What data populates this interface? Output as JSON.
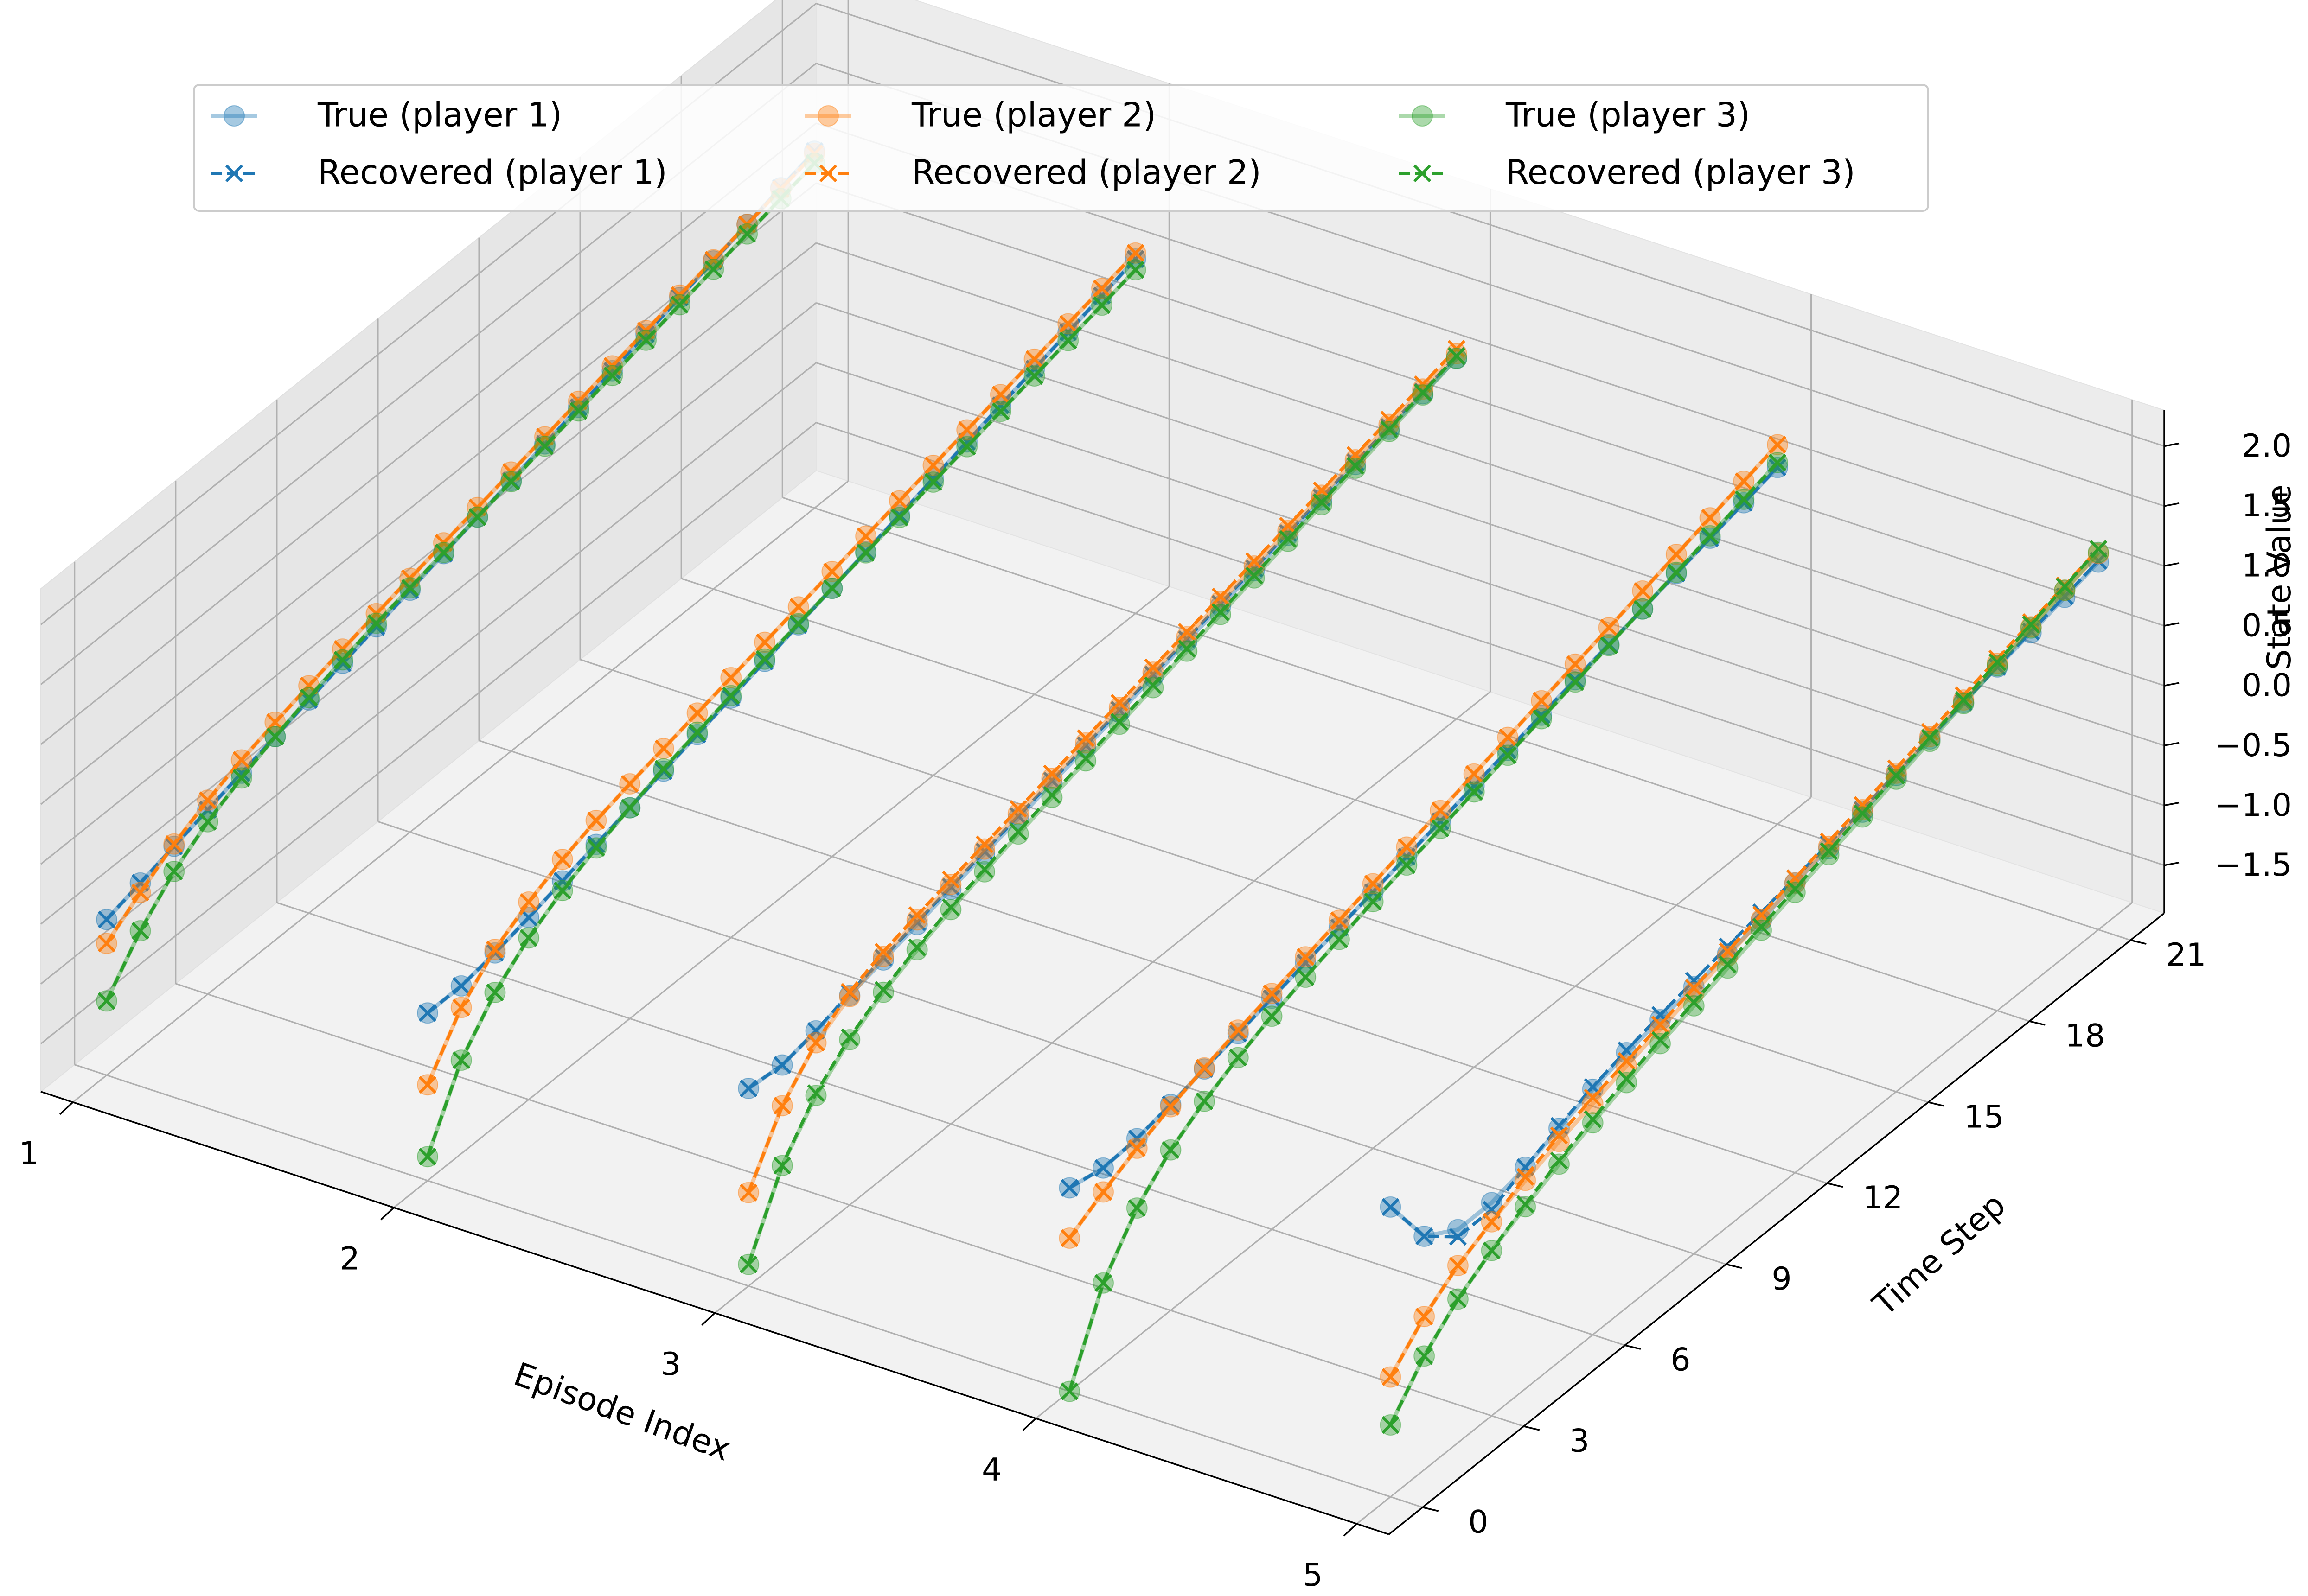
{
  "chart_data": {
    "type": "line3d",
    "xlabel": "Episode Index",
    "ylabel": "Time Step",
    "zlabel": "State Value",
    "xlim": [
      0.9,
      5.1
    ],
    "ylim": [
      -1,
      22
    ],
    "zlim": [
      -1.9,
      2.3
    ],
    "xticks": [
      "1",
      "2",
      "3",
      "4",
      "5"
    ],
    "yticks": [
      "0",
      "3",
      "6",
      "9",
      "12",
      "15",
      "18",
      "21"
    ],
    "zticks": [
      "−1.5",
      "−1.0",
      "−0.5",
      "0.0",
      "0.5",
      "1.0",
      "1.5",
      "2.0"
    ],
    "legend": {
      "location": "top",
      "entries": [
        {
          "label": "True (player 1)",
          "style": "true",
          "color": "#1f77b4"
        },
        {
          "label": "True (player 2)",
          "style": "true",
          "color": "#ff7f0e"
        },
        {
          "label": "True (player 3)",
          "style": "true",
          "color": "#2ca02c"
        },
        {
          "label": "Recovered (player 1)",
          "style": "recovered",
          "color": "#1f77b4"
        },
        {
          "label": "Recovered (player 2)",
          "style": "recovered",
          "color": "#ff7f0e"
        },
        {
          "label": "Recovered (player 3)",
          "style": "recovered",
          "color": "#2ca02c"
        }
      ]
    },
    "time_steps": [
      0,
      1,
      2,
      3,
      4,
      5,
      6,
      7,
      8,
      9,
      10,
      11,
      12,
      13,
      14,
      15,
      16,
      17,
      18,
      19,
      20,
      21
    ],
    "episodes": [
      1,
      2,
      3,
      4,
      5
    ],
    "players": [
      {
        "name": "player 1",
        "color": "#1f77b4"
      },
      {
        "name": "player 2",
        "color": "#ff7f0e"
      },
      {
        "name": "player 3",
        "color": "#2ca02c"
      }
    ],
    "series_true": [
      [
        [
          -0.6,
          -0.52,
          -0.44,
          -0.36,
          -0.28,
          -0.2,
          -0.12,
          -0.04,
          0.04,
          0.12,
          0.2,
          0.28,
          0.36,
          0.44,
          0.52,
          0.6,
          0.68,
          0.76,
          0.84,
          0.92,
          1.0,
          1.08
        ],
        [
          -0.8,
          -0.6,
          -0.42,
          -0.28,
          -0.17,
          -0.08,
          0.0,
          0.08,
          0.15,
          0.22,
          0.29,
          0.36,
          0.43,
          0.5,
          0.57,
          0.64,
          0.71,
          0.78,
          0.85,
          0.92,
          0.99,
          1.06
        ],
        [
          -1.28,
          -0.92,
          -0.65,
          -0.46,
          -0.32,
          -0.2,
          -0.1,
          -0.01,
          0.07,
          0.14,
          0.21,
          0.28,
          0.35,
          0.42,
          0.49,
          0.56,
          0.63,
          0.7,
          0.77,
          0.84,
          0.91,
          0.98
        ]
      ],
      [
        [
          -0.5,
          -0.5,
          -0.45,
          -0.38,
          -0.3,
          -0.22,
          -0.14,
          -0.06,
          0.02,
          0.1,
          0.18,
          0.26,
          0.34,
          0.42,
          0.5,
          0.58,
          0.66,
          0.74,
          0.82,
          0.9,
          0.98,
          1.06
        ],
        [
          -1.1,
          -0.68,
          -0.42,
          -0.25,
          -0.12,
          -0.02,
          0.06,
          0.13,
          0.2,
          0.27,
          0.34,
          0.41,
          0.48,
          0.55,
          0.62,
          0.69,
          0.76,
          0.83,
          0.9,
          0.97,
          1.04,
          1.11
        ],
        [
          -1.7,
          -1.12,
          -0.78,
          -0.55,
          -0.38,
          -0.25,
          -0.14,
          -0.04,
          0.04,
          0.12,
          0.2,
          0.27,
          0.34,
          0.41,
          0.48,
          0.55,
          0.62,
          0.69,
          0.76,
          0.83,
          0.9,
          0.97
        ]
      ],
      [
        [
          -0.25,
          -0.28,
          -0.22,
          -0.15,
          -0.08,
          -0.01,
          0.06,
          0.13,
          0.2,
          0.27,
          0.34,
          0.41,
          0.48,
          0.55,
          0.62,
          0.69,
          0.76,
          0.83,
          0.9,
          0.97,
          1.04,
          1.11
        ],
        [
          -1.12,
          -0.62,
          -0.32,
          -0.16,
          -0.05,
          0.03,
          0.1,
          0.17,
          0.24,
          0.31,
          0.38,
          0.45,
          0.52,
          0.59,
          0.66,
          0.73,
          0.8,
          0.87,
          0.94,
          1.01,
          1.08,
          1.15
        ],
        [
          -1.72,
          -1.12,
          -0.76,
          -0.52,
          -0.35,
          -0.22,
          -0.11,
          -0.02,
          0.07,
          0.15,
          0.23,
          0.31,
          0.39,
          0.47,
          0.55,
          0.63,
          0.71,
          0.79,
          0.87,
          0.95,
          1.03,
          1.11
        ]
      ],
      [
        [
          -0.2,
          -0.26,
          -0.24,
          -0.18,
          -0.11,
          -0.04,
          0.03,
          0.1,
          0.17,
          0.24,
          0.31,
          0.38,
          0.45,
          0.52,
          0.59,
          0.66,
          0.73,
          0.8,
          0.87,
          0.94,
          1.01,
          1.08
        ],
        [
          -0.62,
          -0.46,
          -0.32,
          -0.2,
          -0.1,
          -0.01,
          0.07,
          0.15,
          0.23,
          0.31,
          0.39,
          0.47,
          0.55,
          0.63,
          0.71,
          0.79,
          0.87,
          0.95,
          1.03,
          1.11,
          1.19,
          1.27
        ],
        [
          -1.9,
          -1.22,
          -0.82,
          -0.56,
          -0.38,
          -0.24,
          -0.12,
          -0.02,
          0.07,
          0.16,
          0.24,
          0.32,
          0.4,
          0.48,
          0.56,
          0.64,
          0.72,
          0.8,
          0.88,
          0.96,
          1.04,
          1.12
        ]
      ],
      [
        [
          0.52,
          0.05,
          -0.12,
          -0.12,
          -0.05,
          0.05,
          0.15,
          0.23,
          0.28,
          0.33,
          0.38,
          0.43,
          0.52,
          0.58,
          0.66,
          0.74,
          0.82,
          0.9,
          0.97,
          1.03,
          1.1,
          1.17
        ],
        [
          -0.9,
          -0.62,
          -0.42,
          -0.28,
          -0.16,
          -0.06,
          0.03,
          0.12,
          0.2,
          0.28,
          0.36,
          0.44,
          0.52,
          0.6,
          0.68,
          0.76,
          0.84,
          0.92,
          1.0,
          1.08,
          1.16,
          1.24
        ],
        [
          -1.3,
          -0.95,
          -0.7,
          -0.52,
          -0.38,
          -0.25,
          -0.13,
          -0.02,
          0.08,
          0.17,
          0.26,
          0.35,
          0.44,
          0.53,
          0.62,
          0.71,
          0.8,
          0.89,
          0.98,
          1.07,
          1.16,
          1.25
        ]
      ]
    ],
    "series_recovered": [
      [
        [
          -0.6,
          -0.52,
          -0.44,
          -0.36,
          -0.28,
          -0.2,
          -0.12,
          -0.04,
          0.04,
          0.12,
          0.2,
          0.28,
          0.36,
          0.44,
          0.52,
          0.6,
          0.68,
          0.76,
          0.84,
          0.92,
          1.0,
          1.08
        ],
        [
          -0.8,
          -0.6,
          -0.42,
          -0.28,
          -0.17,
          -0.08,
          0.0,
          0.08,
          0.15,
          0.22,
          0.29,
          0.36,
          0.43,
          0.5,
          0.57,
          0.64,
          0.71,
          0.78,
          0.85,
          0.92,
          0.99,
          1.06
        ],
        [
          -1.28,
          -0.92,
          -0.65,
          -0.46,
          -0.32,
          -0.2,
          -0.1,
          -0.01,
          0.07,
          0.14,
          0.21,
          0.28,
          0.35,
          0.42,
          0.49,
          0.56,
          0.63,
          0.7,
          0.77,
          0.84,
          0.91,
          0.98
        ]
      ],
      [
        [
          -0.5,
          -0.5,
          -0.45,
          -0.38,
          -0.3,
          -0.22,
          -0.14,
          -0.06,
          0.02,
          0.1,
          0.18,
          0.26,
          0.34,
          0.42,
          0.5,
          0.58,
          0.66,
          0.74,
          0.82,
          0.9,
          0.98,
          1.06
        ],
        [
          -1.1,
          -0.68,
          -0.42,
          -0.25,
          -0.12,
          -0.02,
          0.06,
          0.13,
          0.2,
          0.27,
          0.34,
          0.41,
          0.48,
          0.55,
          0.62,
          0.69,
          0.76,
          0.83,
          0.9,
          0.97,
          1.04,
          1.11
        ],
        [
          -1.7,
          -1.12,
          -0.78,
          -0.55,
          -0.38,
          -0.25,
          -0.14,
          -0.04,
          0.04,
          0.12,
          0.2,
          0.27,
          0.34,
          0.41,
          0.48,
          0.55,
          0.62,
          0.69,
          0.76,
          0.83,
          0.9,
          0.97
        ]
      ],
      [
        [
          -0.25,
          -0.28,
          -0.22,
          -0.13,
          -0.06,
          0.01,
          0.08,
          0.15,
          0.22,
          0.29,
          0.36,
          0.43,
          0.5,
          0.57,
          0.64,
          0.71,
          0.78,
          0.85,
          0.92,
          0.99,
          1.06,
          1.13
        ],
        [
          -1.12,
          -0.62,
          -0.32,
          -0.12,
          -0.01,
          0.07,
          0.14,
          0.21,
          0.28,
          0.35,
          0.42,
          0.49,
          0.56,
          0.63,
          0.7,
          0.77,
          0.84,
          0.91,
          0.98,
          1.05,
          1.12,
          1.19
        ],
        [
          -1.72,
          -1.12,
          -0.74,
          -0.5,
          -0.33,
          -0.2,
          -0.09,
          0.0,
          0.09,
          0.17,
          0.25,
          0.33,
          0.41,
          0.49,
          0.57,
          0.65,
          0.73,
          0.81,
          0.89,
          0.97,
          1.05,
          1.13
        ]
      ],
      [
        [
          -0.2,
          -0.26,
          -0.24,
          -0.18,
          -0.11,
          -0.04,
          0.03,
          0.1,
          0.17,
          0.24,
          0.31,
          0.38,
          0.45,
          0.52,
          0.59,
          0.66,
          0.73,
          0.8,
          0.87,
          0.94,
          1.01,
          1.08
        ],
        [
          -0.62,
          -0.46,
          -0.32,
          -0.2,
          -0.1,
          -0.01,
          0.07,
          0.15,
          0.23,
          0.31,
          0.39,
          0.47,
          0.55,
          0.63,
          0.71,
          0.79,
          0.87,
          0.95,
          1.03,
          1.11,
          1.19,
          1.27
        ],
        [
          -1.9,
          -1.22,
          -0.82,
          -0.56,
          -0.38,
          -0.24,
          -0.12,
          -0.02,
          0.07,
          0.16,
          0.24,
          0.32,
          0.4,
          0.48,
          0.56,
          0.64,
          0.72,
          0.8,
          0.88,
          0.96,
          1.04,
          1.12
        ]
      ],
      [
        [
          0.52,
          0.05,
          -0.18,
          -0.18,
          -0.05,
          0.07,
          0.17,
          0.25,
          0.32,
          0.38,
          0.44,
          0.5,
          0.56,
          0.62,
          0.68,
          0.76,
          0.83,
          0.9,
          0.97,
          1.04,
          1.11,
          1.18
        ],
        [
          -0.9,
          -0.62,
          -0.42,
          -0.28,
          -0.13,
          -0.01,
          0.08,
          0.16,
          0.24,
          0.32,
          0.4,
          0.48,
          0.56,
          0.64,
          0.72,
          0.8,
          0.88,
          0.96,
          1.04,
          1.12,
          1.2,
          1.28
        ],
        [
          -1.3,
          -0.95,
          -0.7,
          -0.52,
          -0.36,
          -0.22,
          -0.1,
          0.01,
          0.11,
          0.2,
          0.29,
          0.38,
          0.47,
          0.56,
          0.65,
          0.74,
          0.83,
          0.92,
          1.01,
          1.1,
          1.19,
          1.28
        ]
      ]
    ]
  }
}
